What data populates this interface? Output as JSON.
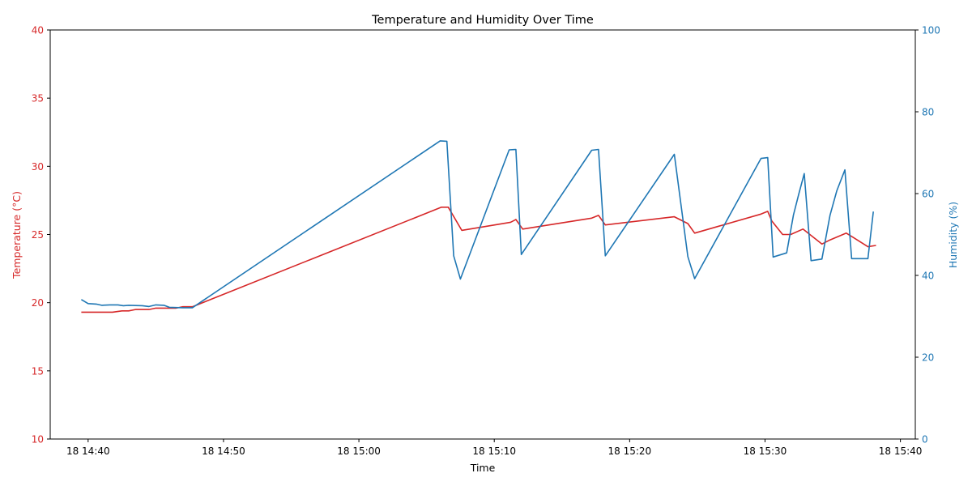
{
  "chart_data": {
    "type": "line",
    "title": "Temperature and Humidity Over Time",
    "xlabel": "Time",
    "x_ticks": [
      "18 14:40",
      "18 14:50",
      "18 15:00",
      "18 15:10",
      "18 15:20",
      "18 15:30",
      "18 15:40"
    ],
    "x_tick_minutes": [
      40,
      50,
      60,
      70,
      80,
      90,
      100
    ],
    "x_range_minutes": [
      37.2,
      101.1
    ],
    "left_axis": {
      "label": "Temperature (°C)",
      "color": "#d62728",
      "ylim": [
        10,
        40
      ],
      "ticks": [
        "10",
        "15",
        "20",
        "25",
        "30",
        "35",
        "40"
      ]
    },
    "right_axis": {
      "label": "Humidity (%)",
      "color": "#1f77b4",
      "ylim": [
        0,
        100
      ],
      "ticks": [
        "0",
        "20",
        "40",
        "60",
        "80",
        "100"
      ]
    },
    "grid": false,
    "series": [
      {
        "axis": "left",
        "color": "#d62728",
        "points": [
          [
            39.5,
            19.3
          ],
          [
            40.2,
            19.3
          ],
          [
            41.0,
            19.3
          ],
          [
            41.8,
            19.3
          ],
          [
            42.5,
            19.4
          ],
          [
            43.0,
            19.4
          ],
          [
            43.5,
            19.5
          ],
          [
            44.5,
            19.5
          ],
          [
            45.0,
            19.6
          ],
          [
            46.0,
            19.6
          ],
          [
            46.5,
            19.6
          ],
          [
            47.0,
            19.7
          ],
          [
            47.7,
            19.7
          ],
          [
            66.1,
            27.0
          ],
          [
            66.6,
            27.0
          ],
          [
            67.6,
            25.3
          ],
          [
            71.2,
            25.9
          ],
          [
            71.6,
            26.1
          ],
          [
            72.1,
            25.4
          ],
          [
            77.2,
            26.2
          ],
          [
            77.7,
            26.4
          ],
          [
            78.2,
            25.7
          ],
          [
            83.3,
            26.3
          ],
          [
            84.3,
            25.8
          ],
          [
            84.8,
            25.1
          ],
          [
            89.7,
            26.5
          ],
          [
            90.2,
            26.7
          ],
          [
            90.5,
            26.0
          ],
          [
            91.3,
            25.0
          ],
          [
            91.9,
            25.0
          ],
          [
            92.8,
            25.4
          ],
          [
            94.2,
            24.3
          ],
          [
            94.8,
            24.6
          ],
          [
            96.0,
            25.1
          ],
          [
            96.5,
            24.8
          ],
          [
            97.6,
            24.1
          ],
          [
            98.2,
            24.2
          ]
        ]
      },
      {
        "axis": "right",
        "color": "#1f77b4",
        "points": [
          [
            39.5,
            34.1
          ],
          [
            40.0,
            33.1
          ],
          [
            40.6,
            33.0
          ],
          [
            41.0,
            32.7
          ],
          [
            41.6,
            32.8
          ],
          [
            42.2,
            32.8
          ],
          [
            42.6,
            32.6
          ],
          [
            43.0,
            32.7
          ],
          [
            44.0,
            32.6
          ],
          [
            44.5,
            32.4
          ],
          [
            45.0,
            32.8
          ],
          [
            45.6,
            32.7
          ],
          [
            46.0,
            32.2
          ],
          [
            47.0,
            32.1
          ],
          [
            47.7,
            32.1
          ],
          [
            66.0,
            72.9
          ],
          [
            66.5,
            72.8
          ],
          [
            67.0,
            44.8
          ],
          [
            67.5,
            39.1
          ],
          [
            71.1,
            70.7
          ],
          [
            71.6,
            70.8
          ],
          [
            72.0,
            45.1
          ],
          [
            77.2,
            70.6
          ],
          [
            77.7,
            70.8
          ],
          [
            78.2,
            44.8
          ],
          [
            83.3,
            69.6
          ],
          [
            84.3,
            44.6
          ],
          [
            84.8,
            39.2
          ],
          [
            89.7,
            68.6
          ],
          [
            90.2,
            68.8
          ],
          [
            90.6,
            44.5
          ],
          [
            91.6,
            45.5
          ],
          [
            92.1,
            54.8
          ],
          [
            92.5,
            60.0
          ],
          [
            92.9,
            64.9
          ],
          [
            93.4,
            43.6
          ],
          [
            94.2,
            44.0
          ],
          [
            94.8,
            54.7
          ],
          [
            95.3,
            60.7
          ],
          [
            95.9,
            65.8
          ],
          [
            96.4,
            44.1
          ],
          [
            97.6,
            44.1
          ],
          [
            98.0,
            55.6
          ]
        ]
      }
    ]
  }
}
